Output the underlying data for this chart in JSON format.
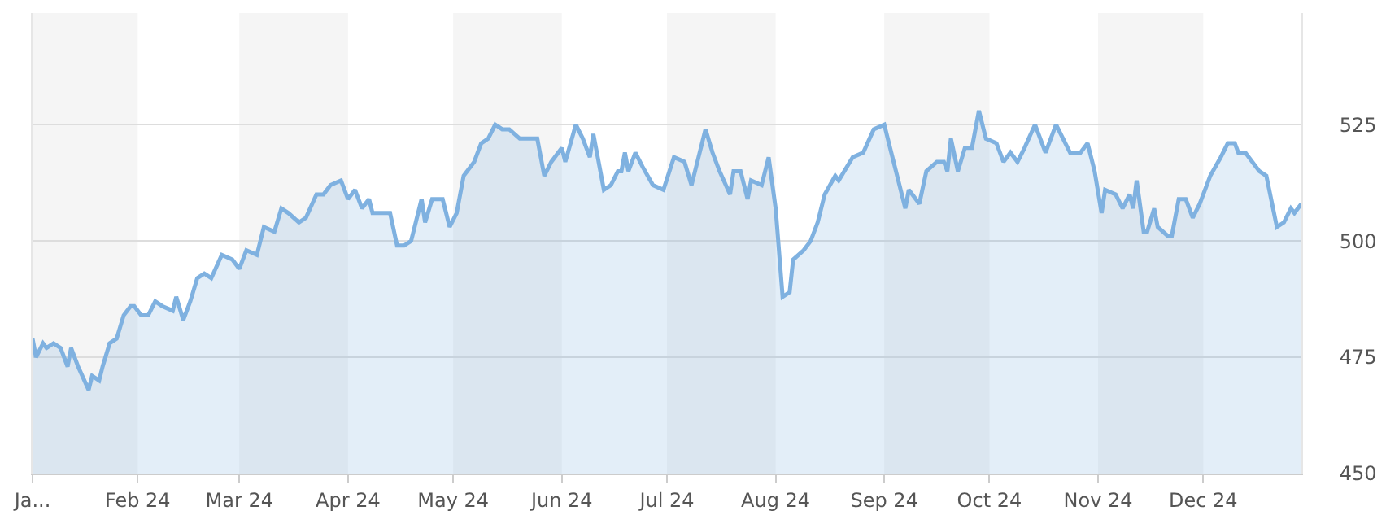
{
  "chart_data": {
    "type": "area",
    "x": [
      "2024-01-02",
      "2024-01-03",
      "2024-01-05",
      "2024-01-06",
      "2024-01-08",
      "2024-01-10",
      "2024-01-12",
      "2024-01-13",
      "2024-01-15",
      "2024-01-18",
      "2024-01-19",
      "2024-01-21",
      "2024-01-22",
      "2024-01-24",
      "2024-01-26",
      "2024-01-28",
      "2024-01-30",
      "2024-01-31",
      "2024-02-02",
      "2024-02-04",
      "2024-02-06",
      "2024-02-08",
      "2024-02-11",
      "2024-02-12",
      "2024-02-14",
      "2024-02-16",
      "2024-02-18",
      "2024-02-20",
      "2024-02-22",
      "2024-02-25",
      "2024-02-28",
      "2024-03-01",
      "2024-03-03",
      "2024-03-06",
      "2024-03-08",
      "2024-03-11",
      "2024-03-13",
      "2024-03-15",
      "2024-03-18",
      "2024-03-20",
      "2024-03-23",
      "2024-03-25",
      "2024-03-27",
      "2024-03-30",
      "2024-04-01",
      "2024-04-03",
      "2024-04-05",
      "2024-04-07",
      "2024-04-08",
      "2024-04-11",
      "2024-04-13",
      "2024-04-15",
      "2024-04-17",
      "2024-04-19",
      "2024-04-22",
      "2024-04-23",
      "2024-04-25",
      "2024-04-28",
      "2024-04-30",
      "2024-05-02",
      "2024-05-04",
      "2024-05-07",
      "2024-05-09",
      "2024-05-11",
      "2024-05-13",
      "2024-05-15",
      "2024-05-17",
      "2024-05-20",
      "2024-05-22",
      "2024-05-25",
      "2024-05-27",
      "2024-05-29",
      "2024-06-01",
      "2024-06-02",
      "2024-06-05",
      "2024-06-07",
      "2024-06-09",
      "2024-06-10",
      "2024-06-13",
      "2024-06-15",
      "2024-06-17",
      "2024-06-18",
      "2024-06-19",
      "2024-06-20",
      "2024-06-22",
      "2024-06-24",
      "2024-06-27",
      "2024-06-30",
      "2024-07-03",
      "2024-07-06",
      "2024-07-08",
      "2024-07-10",
      "2024-07-12",
      "2024-07-14",
      "2024-07-16",
      "2024-07-19",
      "2024-07-20",
      "2024-07-22",
      "2024-07-24",
      "2024-07-25",
      "2024-07-28",
      "2024-07-30",
      "2024-08-01",
      "2024-08-03",
      "2024-08-05",
      "2024-08-06",
      "2024-08-09",
      "2024-08-11",
      "2024-08-13",
      "2024-08-15",
      "2024-08-18",
      "2024-08-19",
      "2024-08-23",
      "2024-08-26",
      "2024-08-29",
      "2024-09-01",
      "2024-09-03",
      "2024-09-05",
      "2024-09-07",
      "2024-09-08",
      "2024-09-11",
      "2024-09-13",
      "2024-09-16",
      "2024-09-18",
      "2024-09-19",
      "2024-09-20",
      "2024-09-22",
      "2024-09-24",
      "2024-09-26",
      "2024-09-28",
      "2024-09-30",
      "2024-10-03",
      "2024-10-05",
      "2024-10-07",
      "2024-10-09",
      "2024-10-11",
      "2024-10-14",
      "2024-10-17",
      "2024-10-20",
      "2024-10-22",
      "2024-10-24",
      "2024-10-27",
      "2024-10-29",
      "2024-10-31",
      "2024-11-02",
      "2024-11-03",
      "2024-11-06",
      "2024-11-08",
      "2024-11-10",
      "2024-11-11",
      "2024-11-12",
      "2024-11-14",
      "2024-11-15",
      "2024-11-17",
      "2024-11-18",
      "2024-11-21",
      "2024-11-22",
      "2024-11-24",
      "2024-11-26",
      "2024-11-28",
      "2024-11-30",
      "2024-12-03",
      "2024-12-06",
      "2024-12-08",
      "2024-12-10",
      "2024-12-11",
      "2024-12-13",
      "2024-12-15",
      "2024-12-17",
      "2024-12-19",
      "2024-12-22",
      "2024-12-24",
      "2024-12-26",
      "2024-12-27",
      "2024-12-29"
    ],
    "series": [
      {
        "color": "#7fb1e0",
        "values": [
          479,
          475,
          478,
          477,
          478,
          477,
          473,
          477,
          473,
          468,
          471,
          470,
          473,
          478,
          479,
          484,
          486,
          486,
          484,
          484,
          487,
          486,
          485,
          488,
          483,
          487,
          492,
          493,
          492,
          497,
          496,
          494,
          498,
          497,
          503,
          502,
          507,
          506,
          504,
          505,
          510,
          510,
          512,
          513,
          509,
          511,
          507,
          509,
          506,
          506,
          506,
          499,
          499,
          500,
          509,
          504,
          509,
          509,
          503,
          506,
          514,
          517,
          521,
          522,
          525,
          524,
          524,
          522,
          522,
          522,
          514,
          517,
          520,
          517,
          525,
          522,
          518,
          523,
          511,
          512,
          515,
          515,
          519,
          515,
          519,
          516,
          512,
          511,
          518,
          517,
          512,
          518,
          524,
          519,
          515,
          510,
          515,
          515,
          509,
          513,
          512,
          518,
          507,
          488,
          489,
          496,
          498,
          500,
          504,
          510,
          514,
          513,
          518,
          519,
          524,
          525,
          519,
          513,
          507,
          511,
          508,
          515,
          517,
          517,
          515,
          522,
          515,
          520,
          520,
          528,
          522,
          521,
          517,
          519,
          517,
          520,
          525,
          519,
          525,
          522,
          519,
          519,
          521,
          515,
          506,
          511,
          510,
          507,
          510,
          507,
          513,
          502,
          502,
          507,
          503,
          501,
          501,
          509,
          509,
          505,
          508,
          514,
          518,
          521,
          521,
          519,
          519,
          517,
          515,
          514,
          503,
          504,
          507,
          506,
          508
        ]
      }
    ],
    "xlim": [
      "2024-01-02",
      "2024-12-29"
    ],
    "xticks": [
      {
        "value": "2024-01-02",
        "label": "Ja..."
      },
      {
        "value": "2024-02-01",
        "label": "Feb 24"
      },
      {
        "value": "2024-03-01",
        "label": "Mar 24"
      },
      {
        "value": "2024-04-01",
        "label": "Apr 24"
      },
      {
        "value": "2024-05-01",
        "label": "May 24"
      },
      {
        "value": "2024-06-01",
        "label": "Jun 24"
      },
      {
        "value": "2024-07-01",
        "label": "Jul 24"
      },
      {
        "value": "2024-08-01",
        "label": "Aug 24"
      },
      {
        "value": "2024-09-01",
        "label": "Sep 24"
      },
      {
        "value": "2024-10-01",
        "label": "Oct 24"
      },
      {
        "value": "2024-11-01",
        "label": "Nov 24"
      },
      {
        "value": "2024-12-01",
        "label": "Dec 24"
      }
    ],
    "ylim": [
      450,
      549
    ],
    "yticks": [
      450,
      475,
      500,
      525
    ],
    "grid": "y",
    "bands": [
      {
        "axis": "x",
        "from": "2024-01-02",
        "to": "2024-02-01",
        "color": "#f5f5f5"
      },
      {
        "axis": "x",
        "from": "2024-03-01",
        "to": "2024-04-01",
        "color": "#f5f5f5"
      },
      {
        "axis": "x",
        "from": "2024-05-01",
        "to": "2024-06-01",
        "color": "#f5f5f5"
      },
      {
        "axis": "x",
        "from": "2024-07-01",
        "to": "2024-08-01",
        "color": "#f5f5f5"
      },
      {
        "axis": "x",
        "from": "2024-09-01",
        "to": "2024-10-01",
        "color": "#f5f5f5"
      },
      {
        "axis": "x",
        "from": "2024-11-01",
        "to": "2024-12-01",
        "color": "#f5f5f5"
      }
    ]
  }
}
